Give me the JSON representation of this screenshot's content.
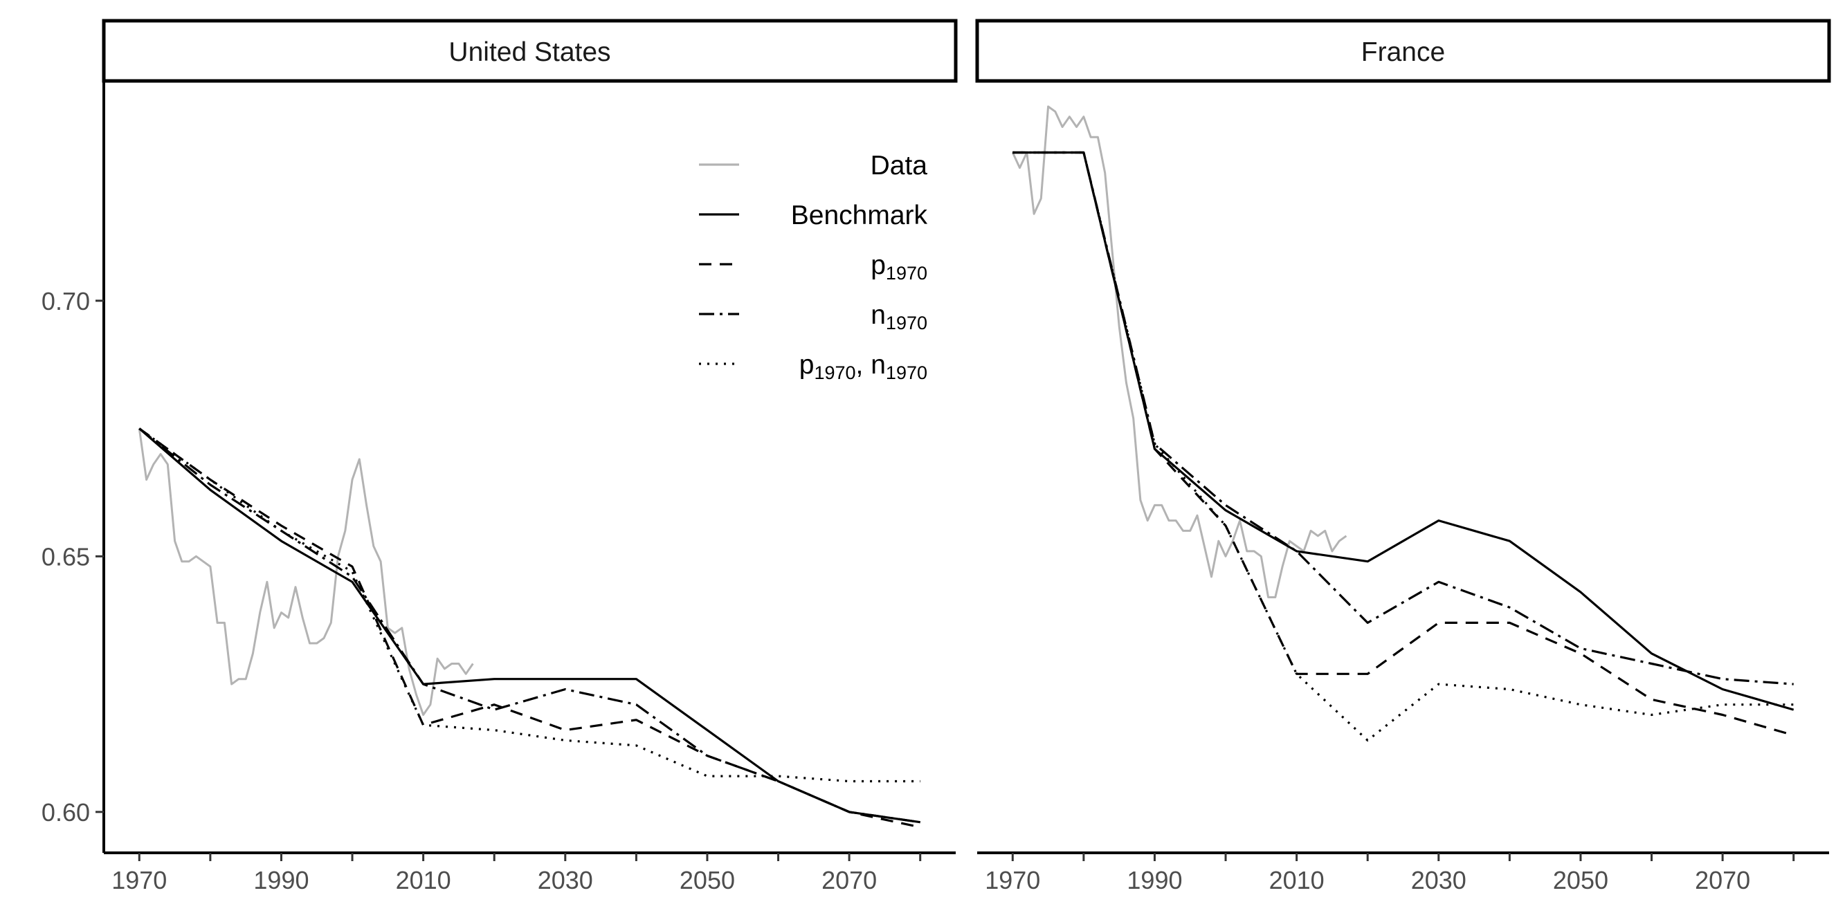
{
  "chart_data": {
    "type": "line",
    "layout": "facets",
    "grid": false,
    "legend_position": "top-right",
    "xlim": [
      1965,
      2085
    ],
    "ylim": [
      0.592,
      0.743
    ],
    "x_ticks": [
      1970,
      1980,
      1990,
      2000,
      2010,
      2020,
      2030,
      2040,
      2050,
      2060,
      2070,
      2080
    ],
    "x_tick_labels": [
      "1970",
      "1990",
      "2010",
      "2030",
      "2050",
      "2070"
    ],
    "y_ticks": [
      0.6,
      0.65,
      0.7
    ],
    "y_tick_labels": [
      "0.60",
      "0.65",
      "0.70"
    ],
    "legend": [
      {
        "key": "data",
        "label": "Data",
        "sub": "",
        "color": "#b3b3b3",
        "dash": ""
      },
      {
        "key": "benchmark",
        "label": "Benchmark",
        "sub": "",
        "color": "#000000",
        "dash": ""
      },
      {
        "key": "p1970",
        "label": "p",
        "sub": "1970",
        "color": "#000000",
        "dash": "18,12"
      },
      {
        "key": "n1970",
        "label": "n",
        "sub": "1970",
        "color": "#000000",
        "dash": "22,8,4,8"
      },
      {
        "key": "p1970n1970",
        "label": "p",
        "sub": "1970",
        "label2": ", n",
        "sub2": "1970",
        "color": "#000000",
        "dash": "3,9"
      }
    ],
    "panels": [
      {
        "title": "United States",
        "series": {
          "data": {
            "x": [
              1970,
              1971,
              1972,
              1973,
              1974,
              1975,
              1976,
              1977,
              1978,
              1979,
              1980,
              1981,
              1982,
              1983,
              1984,
              1985,
              1986,
              1987,
              1988,
              1989,
              1990,
              1991,
              1992,
              1993,
              1994,
              1995,
              1996,
              1997,
              1998,
              1999,
              2000,
              2001,
              2002,
              2003,
              2004,
              2005,
              2006,
              2007,
              2008,
              2009,
              2010,
              2011,
              2012,
              2013,
              2014,
              2015,
              2016,
              2017
            ],
            "y": [
              0.675,
              0.665,
              0.668,
              0.67,
              0.668,
              0.653,
              0.649,
              0.649,
              0.65,
              0.649,
              0.648,
              0.637,
              0.637,
              0.625,
              0.626,
              0.626,
              0.631,
              0.639,
              0.645,
              0.636,
              0.639,
              0.638,
              0.644,
              0.638,
              0.633,
              0.633,
              0.634,
              0.637,
              0.65,
              0.655,
              0.665,
              0.669,
              0.66,
              0.652,
              0.649,
              0.636,
              0.635,
              0.636,
              0.628,
              0.623,
              0.619,
              0.621,
              0.63,
              0.628,
              0.629,
              0.629,
              0.627,
              0.629
            ]
          },
          "benchmark": {
            "x": [
              1970,
              1980,
              1990,
              2000,
              2010,
              2020,
              2030,
              2040,
              2050,
              2060,
              2070,
              2080
            ],
            "y": [
              0.675,
              0.663,
              0.653,
              0.645,
              0.625,
              0.626,
              0.626,
              0.626,
              0.616,
              0.606,
              0.6,
              0.598
            ]
          },
          "p1970": {
            "x": [
              1970,
              1980,
              1990,
              2000,
              2010,
              2020,
              2030,
              2040,
              2050,
              2060,
              2070,
              2080
            ],
            "y": [
              0.675,
              0.665,
              0.656,
              0.648,
              0.617,
              0.621,
              0.616,
              0.618,
              0.611,
              0.606,
              0.6,
              0.597
            ]
          },
          "n1970": {
            "x": [
              1970,
              1980,
              1990,
              2000,
              2010,
              2020,
              2030,
              2040,
              2050,
              2060,
              2070,
              2080
            ],
            "y": [
              0.675,
              0.664,
              0.655,
              0.646,
              0.625,
              0.62,
              0.624,
              0.621,
              0.611,
              0.606,
              0.6,
              0.598
            ]
          },
          "p1970n1970": {
            "x": [
              1970,
              1980,
              1990,
              2000,
              2010,
              2020,
              2030,
              2040,
              2050,
              2060,
              2070,
              2080
            ],
            "y": [
              0.675,
              0.665,
              0.655,
              0.647,
              0.617,
              0.616,
              0.614,
              0.613,
              0.607,
              0.607,
              0.606,
              0.606
            ]
          }
        }
      },
      {
        "title": "France",
        "series": {
          "data": {
            "x": [
              1970,
              1971,
              1972,
              1973,
              1974,
              1975,
              1976,
              1977,
              1978,
              1979,
              1980,
              1981,
              1982,
              1983,
              1984,
              1985,
              1986,
              1987,
              1988,
              1989,
              1990,
              1991,
              1992,
              1993,
              1994,
              1995,
              1996,
              1997,
              1998,
              1999,
              2000,
              2001,
              2002,
              2003,
              2004,
              2005,
              2006,
              2007,
              2008,
              2009,
              2010,
              2011,
              2012,
              2013,
              2014,
              2015,
              2016,
              2017
            ],
            "y": [
              0.729,
              0.726,
              0.729,
              0.717,
              0.72,
              0.738,
              0.737,
              0.734,
              0.736,
              0.734,
              0.736,
              0.732,
              0.732,
              0.725,
              0.71,
              0.695,
              0.684,
              0.677,
              0.661,
              0.657,
              0.66,
              0.66,
              0.657,
              0.657,
              0.655,
              0.655,
              0.658,
              0.652,
              0.646,
              0.653,
              0.65,
              0.653,
              0.657,
              0.651,
              0.651,
              0.65,
              0.642,
              0.642,
              0.648,
              0.653,
              0.652,
              0.651,
              0.655,
              0.654,
              0.655,
              0.651,
              0.653,
              0.654
            ]
          },
          "benchmark": {
            "x": [
              1970,
              1980,
              1990,
              2000,
              2010,
              2020,
              2030,
              2040,
              2050,
              2060,
              2070,
              2080
            ],
            "y": [
              0.729,
              0.729,
              0.671,
              0.659,
              0.651,
              0.649,
              0.657,
              0.653,
              0.643,
              0.631,
              0.624,
              0.62
            ]
          },
          "p1970": {
            "x": [
              1970,
              1980,
              1990,
              2000,
              2010,
              2020,
              2030,
              2040,
              2050,
              2060,
              2070,
              2080
            ],
            "y": [
              0.729,
              0.729,
              0.671,
              0.656,
              0.627,
              0.627,
              0.637,
              0.637,
              0.631,
              0.622,
              0.619,
              0.615
            ]
          },
          "n1970": {
            "x": [
              1970,
              1980,
              1990,
              2000,
              2010,
              2020,
              2030,
              2040,
              2050,
              2060,
              2070,
              2080
            ],
            "y": [
              0.729,
              0.729,
              0.672,
              0.66,
              0.651,
              0.637,
              0.645,
              0.64,
              0.632,
              0.629,
              0.626,
              0.625
            ]
          },
          "p1970n1970": {
            "x": [
              1970,
              1980,
              1990,
              2000,
              2010,
              2020,
              2030,
              2040,
              2050,
              2060,
              2070,
              2080
            ],
            "y": [
              0.729,
              0.729,
              0.672,
              0.656,
              0.627,
              0.614,
              0.625,
              0.624,
              0.621,
              0.619,
              0.621,
              0.621
            ]
          }
        }
      }
    ]
  }
}
